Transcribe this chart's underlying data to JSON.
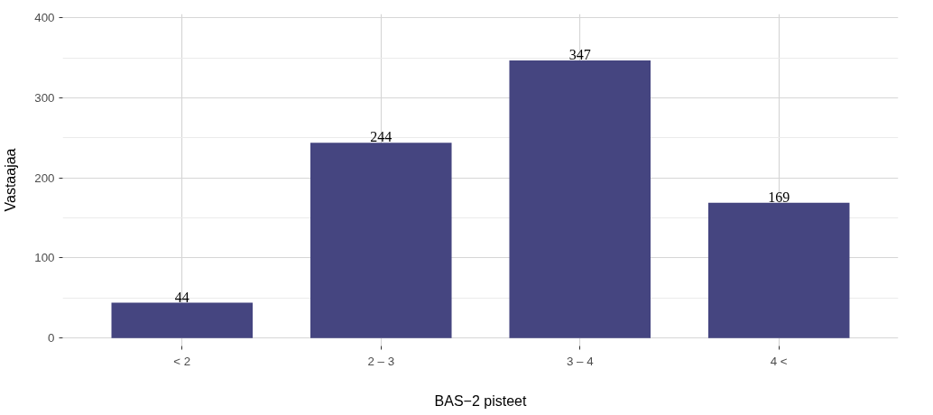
{
  "chart_data": {
    "type": "bar",
    "xlabel": "BAS−2 pisteet",
    "ylabel": "Vastaajaa",
    "categories": [
      "< 2",
      "2 – 3",
      "3 – 4",
      "4 <"
    ],
    "values": [
      44,
      244,
      347,
      169
    ],
    "color": "#454580",
    "ylim": [
      -10,
      405
    ],
    "yticks": [
      0,
      100,
      200,
      300,
      400
    ],
    "grid": true,
    "data_labels": true
  }
}
